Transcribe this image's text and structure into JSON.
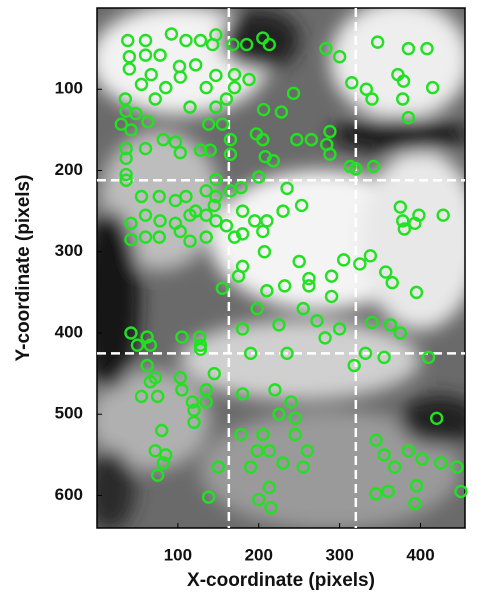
{
  "chart_data": {
    "type": "scatter",
    "xlabel": "X-coordinate (pixels)",
    "ylabel": "Y-coordinate (pixels)",
    "x": [
      38,
      60,
      40,
      60,
      40,
      78,
      92,
      110,
      128,
      143,
      147,
      102,
      122,
      67,
      103,
      85,
      135,
      147,
      168,
      185,
      205,
      213,
      170,
      35,
      55,
      72,
      36,
      48,
      63,
      30,
      42,
      115,
      147,
      160,
      170,
      188,
      155,
      138,
      97,
      82,
      36,
      36,
      36,
      60,
      103,
      128,
      140,
      165,
      197,
      205,
      208,
      165,
      147,
      178,
      200,
      218,
      243,
      228,
      206,
      247,
      265,
      284,
      288,
      283,
      300,
      315,
      333,
      288,
      313,
      347,
      385,
      408,
      340,
      379,
      378,
      415,
      385,
      372,
      36,
      55,
      77,
      97,
      110,
      135,
      147,
      165,
      122,
      135,
      145,
      180,
      60,
      78,
      42,
      97,
      115,
      103,
      60,
      42,
      77,
      115,
      135,
      147,
      160,
      180,
      205,
      230,
      253,
      235,
      320,
      342,
      375,
      378,
      398,
      393,
      380,
      428,
      357,
      338,
      325,
      365,
      395,
      290,
      262,
      232,
      210,
      175,
      198,
      180,
      207,
      195,
      210,
      250,
      262,
      305,
      290,
      170,
      42,
      62,
      50,
      66,
      105,
      128,
      145,
      128,
      62,
      66,
      72,
      75,
      55,
      105,
      118,
      135,
      135,
      103,
      120,
      120,
      80,
      72,
      82,
      75,
      85,
      127,
      155,
      180,
      225,
      190,
      235,
      282,
      300,
      272,
      255,
      318,
      332,
      355,
      340,
      363,
      375,
      410,
      345,
      355,
      368,
      345,
      360,
      385,
      393,
      395,
      402,
      420,
      445,
      450,
      425,
      220,
      180,
      240,
      225,
      245,
      205,
      198,
      213,
      230,
      190,
      213,
      245,
      255,
      260,
      200,
      138,
      150,
      178,
      215
    ],
    "values": [
      40,
      40,
      60,
      58,
      75,
      58,
      32,
      40,
      40,
      45,
      33,
      72,
      70,
      82,
      85,
      98,
      98,
      83,
      45,
      45,
      37,
      45,
      82,
      112,
      94,
      112,
      127,
      130,
      140,
      143,
      150,
      122,
      122,
      112,
      98,
      88,
      143,
      143,
      165,
      162,
      173,
      185,
      205,
      173,
      178,
      175,
      175,
      162,
      155,
      162,
      183,
      180,
      211,
      221,
      208,
      188,
      105,
      128,
      125,
      162,
      162,
      168,
      152,
      50,
      60,
      92,
      100,
      180,
      195,
      42,
      50,
      50,
      112,
      90,
      112,
      98,
      135,
      82,
      212,
      232,
      232,
      237,
      232,
      225,
      232,
      225,
      250,
      255,
      243,
      250,
      255,
      262,
      265,
      265,
      255,
      275,
      282,
      285,
      282,
      287,
      282,
      262,
      268,
      278,
      275,
      250,
      243,
      222,
      198,
      195,
      245,
      262,
      255,
      265,
      272,
      255,
      325,
      305,
      315,
      338,
      350,
      355,
      342,
      342,
      348,
      330,
      370,
      318,
      300,
      262,
      262,
      312,
      333,
      310,
      330,
      282,
      400,
      405,
      415,
      415,
      405,
      415,
      450,
      420,
      440,
      460,
      455,
      478,
      478,
      470,
      485,
      485,
      470,
      455,
      495,
      510,
      520,
      545,
      560,
      575,
      550,
      405,
      345,
      395,
      390,
      425,
      425,
      406,
      395,
      385,
      370,
      440,
      425,
      430,
      387,
      390,
      400,
      430,
      532,
      550,
      565,
      598,
      595,
      545,
      610,
      588,
      555,
      505,
      565,
      595,
      560,
      470,
      475,
      485,
      500,
      505,
      525,
      545,
      545,
      560,
      565,
      590,
      525,
      565,
      545,
      605,
      602,
      565,
      525,
      615
    ],
    "color": "#22e022",
    "xlim": [
      0,
      455
    ],
    "ylim": [
      0,
      640
    ],
    "y_inverted": true,
    "xticks": [
      100,
      200,
      300,
      400
    ],
    "yticks": [
      100,
      200,
      300,
      400,
      500,
      600
    ],
    "vlines": [
      163,
      320
    ],
    "hlines": [
      212,
      425
    ]
  }
}
